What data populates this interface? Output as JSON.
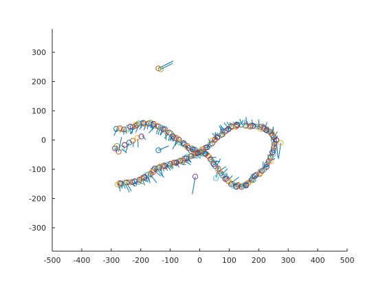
{
  "chart_data": {
    "type": "scatter",
    "title": "",
    "xlabel": "",
    "ylabel": "",
    "xlim": [
      -500,
      500
    ],
    "ylim": [
      -380,
      380
    ],
    "xticks": [
      -500,
      -400,
      -300,
      -200,
      -100,
      0,
      100,
      200,
      300,
      400,
      500
    ],
    "yticks": [
      -300,
      -200,
      -100,
      0,
      100,
      200,
      300
    ],
    "xtick_labels": [
      "-500",
      "-400",
      "-300",
      "-200",
      "-100",
      "0",
      "100",
      "200",
      "300",
      "400",
      "500"
    ],
    "ytick_labels": [
      "-300",
      "-200",
      "-100",
      "0",
      "100",
      "200",
      "300"
    ],
    "grid": false,
    "legend": "none",
    "axes_box": "left-bottom",
    "line_color": "#0072BD",
    "marker_colors": [
      "#0072BD",
      "#D95319",
      "#EDB120",
      "#7E2F8E",
      "#77AC30",
      "#4DBEEE",
      "#A2142F"
    ],
    "marker": "circle-open",
    "path_points": [
      [
        -280,
        40
      ],
      [
        -250,
        35
      ],
      [
        -220,
        50
      ],
      [
        -200,
        55
      ],
      [
        -180,
        58
      ],
      [
        -160,
        55
      ],
      [
        -140,
        45
      ],
      [
        -120,
        35
      ],
      [
        -100,
        20
      ],
      [
        -80,
        5
      ],
      [
        -60,
        -10
      ],
      [
        -40,
        -25
      ],
      [
        -20,
        -35
      ],
      [
        0,
        -40
      ],
      [
        20,
        -50
      ],
      [
        40,
        -70
      ],
      [
        60,
        -100
      ],
      [
        80,
        -125
      ],
      [
        100,
        -145
      ],
      [
        120,
        -158
      ],
      [
        140,
        -160
      ],
      [
        160,
        -150
      ],
      [
        180,
        -135
      ],
      [
        200,
        -115
      ],
      [
        220,
        -95
      ],
      [
        240,
        -70
      ],
      [
        250,
        -40
      ],
      [
        255,
        -10
      ],
      [
        250,
        15
      ],
      [
        235,
        30
      ],
      [
        215,
        40
      ],
      [
        190,
        45
      ],
      [
        160,
        50
      ],
      [
        130,
        52
      ],
      [
        110,
        45
      ],
      [
        90,
        30
      ],
      [
        70,
        15
      ],
      [
        50,
        0
      ],
      [
        30,
        -20
      ],
      [
        10,
        -35
      ],
      [
        -10,
        -45
      ],
      [
        -30,
        -55
      ],
      [
        -50,
        -65
      ],
      [
        -70,
        -75
      ],
      [
        -90,
        -80
      ],
      [
        -110,
        -85
      ],
      [
        -130,
        -90
      ],
      [
        -150,
        -100
      ],
      [
        -170,
        -115
      ],
      [
        -190,
        -130
      ],
      [
        -210,
        -140
      ],
      [
        -235,
        -145
      ],
      [
        -260,
        -148
      ],
      [
        -280,
        -150
      ]
    ],
    "inner_points": [
      [
        -290,
        -30
      ],
      [
        -280,
        -20
      ],
      [
        -265,
        -30
      ],
      [
        -255,
        -20
      ],
      [
        -240,
        -10
      ],
      [
        -225,
        -5
      ],
      [
        -210,
        5
      ],
      [
        -195,
        15
      ]
    ],
    "outliers": [
      {
        "x": -140,
        "y": 245,
        "dx": 50,
        "dy": 25
      },
      {
        "x": -132,
        "y": 242,
        "dx": 40,
        "dy": 20
      },
      {
        "x": -140,
        "y": -35,
        "dx": 35,
        "dy": 15
      },
      {
        "x": -15,
        "y": -125,
        "dx": -10,
        "dy": -60
      },
      {
        "x": 260,
        "y": 0,
        "dx": 5,
        "dy": -60
      },
      {
        "x": 275,
        "y": -10,
        "dx": -8,
        "dy": -55
      },
      {
        "x": 55,
        "y": -130,
        "dx": 10,
        "dy": 40
      },
      {
        "x": -275,
        "y": -40,
        "dx": 10,
        "dy": 50
      }
    ]
  }
}
